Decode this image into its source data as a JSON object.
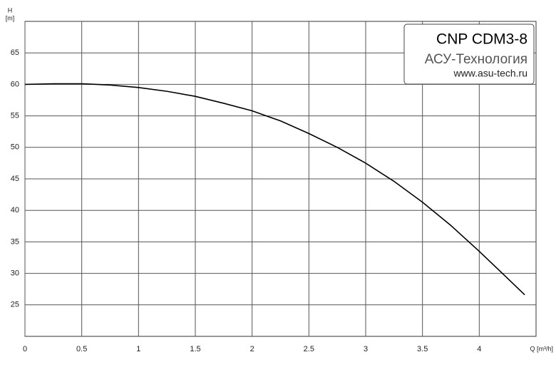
{
  "chart_data": {
    "type": "line",
    "x_label": "Q [m³/h]",
    "y_label": "H",
    "y_unit": "[m]",
    "legend_box": {
      "title": "CNP CDM3-8",
      "company": "АСУ-Технология",
      "url": "www.asu-tech.ru"
    },
    "x": [
      0,
      0.25,
      0.5,
      0.75,
      1,
      1.25,
      1.5,
      1.75,
      2,
      2.25,
      2.5,
      2.75,
      3,
      3.25,
      3.5,
      3.75,
      4,
      4.25,
      4.4
    ],
    "series": [
      {
        "color": "#000000",
        "values": [
          60,
          60.1,
          60.1,
          59.9,
          59.5,
          58.9,
          58.1,
          57,
          55.8,
          54.2,
          52.2,
          50,
          47.5,
          44.6,
          41.3,
          37.6,
          33.5,
          29.2,
          26.6
        ]
      }
    ],
    "xlim": [
      0,
      4.5
    ],
    "ylim": [
      20,
      70
    ],
    "xticks": [
      0,
      0.5,
      1,
      1.5,
      2,
      2.5,
      3,
      3.5,
      4
    ],
    "yticks": [
      25,
      30,
      35,
      40,
      45,
      50,
      55,
      60,
      65
    ],
    "grid": true
  }
}
